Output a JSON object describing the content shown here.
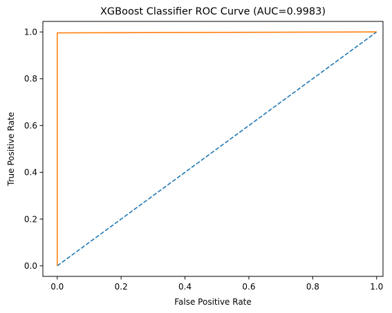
{
  "chart_data": {
    "type": "line",
    "title": "XGBoost Classifier ROC Curve (AUC=0.9983)",
    "xlabel": "False Positive Rate",
    "ylabel": "True Positive Rate",
    "xlim": [
      -0.045,
      1.02
    ],
    "ylim": [
      -0.045,
      1.045
    ],
    "xticks": [
      0.0,
      0.2,
      0.4,
      0.6,
      0.8,
      1.0
    ],
    "yticks": [
      0.0,
      0.2,
      0.4,
      0.6,
      0.8,
      1.0
    ],
    "xtick_labels": [
      "0.0",
      "0.2",
      "0.4",
      "0.6",
      "0.8",
      "1.0"
    ],
    "ytick_labels": [
      "0.0",
      "0.2",
      "0.4",
      "0.6",
      "0.8",
      "1.0"
    ],
    "grid": false,
    "series": [
      {
        "style": "dashed",
        "color": "#1f77b4",
        "x": [
          0.0,
          1.0
        ],
        "y": [
          0.0,
          1.0
        ]
      },
      {
        "style": "solid",
        "color": "#ff7f0e",
        "x": [
          0.0,
          0.0,
          1.0
        ],
        "y": [
          0.0,
          0.996,
          1.0
        ]
      }
    ]
  }
}
